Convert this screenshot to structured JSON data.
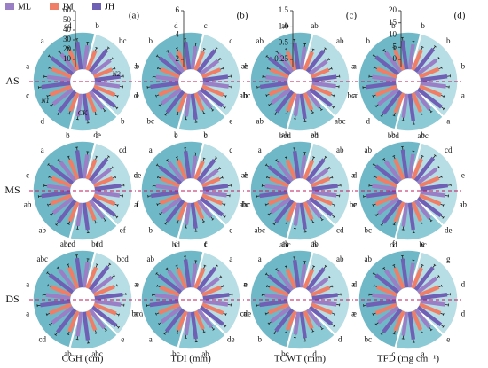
{
  "legend": [
    {
      "name": "ML",
      "color": "#9b7fc6"
    },
    {
      "name": "JM",
      "color": "#f07e66"
    },
    {
      "name": "JH",
      "color": "#6f5fb5"
    }
  ],
  "row_labels": [
    "AS",
    "MS",
    "DS"
  ],
  "colors": {
    "ring_dark": "#6fb8c7",
    "ring_mid": "#8ccad6",
    "ring_light": "#b7dde5",
    "sector_line": "#ffffff",
    "dashed": "#c2185b",
    "error_bar": "#222222"
  },
  "sector_labels": [
    "N1",
    "CK",
    "N2"
  ],
  "panels": [
    {
      "letter": "(a)",
      "xlabel": "CGH (cm)",
      "scale_ticks": [
        "60",
        "50",
        "40",
        "30",
        "20",
        "10"
      ]
    },
    {
      "letter": "(b)",
      "xlabel": "TDI (mm)",
      "scale_ticks": [
        "6",
        "4",
        "2"
      ]
    },
    {
      "letter": "(c)",
      "xlabel": "TCWT (mm)",
      "scale_ticks": [
        "1.5",
        "1.0",
        "0.5",
        "0.25"
      ]
    },
    {
      "letter": "(d)",
      "xlabel": "TFD (mg cm⁻¹)",
      "scale_ticks": [
        "20",
        "15",
        "10",
        "5",
        "0"
      ]
    }
  ],
  "chart_data": {
    "type": "radial-bar",
    "series": [
      {
        "name": "ML",
        "color": "#9b7fc6"
      },
      {
        "name": "JM",
        "color": "#f07e66"
      },
      {
        "name": "JH",
        "color": "#6f5fb5"
      }
    ],
    "grid": [
      [
        {
          "values": [
            0.75,
            0.65,
            0.85,
            0.7,
            0.6,
            0.8,
            0.78,
            0.7,
            0.88,
            0.66,
            0.62,
            0.82,
            0.7,
            0.6,
            0.8,
            0.76,
            0.7,
            0.9,
            0.72,
            0.64,
            0.84,
            0.7,
            0.66,
            0.86
          ],
          "letters": [
            "b",
            "bc",
            "b",
            "e",
            "b",
            "a",
            "b",
            "d",
            "c",
            "a",
            "a",
            "cd"
          ]
        },
        {
          "values": [
            0.72,
            0.62,
            0.84,
            0.68,
            0.6,
            0.78,
            0.8,
            0.7,
            0.86,
            0.64,
            0.58,
            0.8,
            0.7,
            0.62,
            0.82,
            0.74,
            0.68,
            0.88,
            0.7,
            0.62,
            0.84,
            0.72,
            0.64,
            0.86
          ],
          "letters": [
            "c",
            "c",
            "e",
            "b",
            "e",
            "c",
            "e",
            "bc",
            "d",
            "a",
            "b",
            "d"
          ]
        },
        {
          "values": [
            0.7,
            0.6,
            0.82,
            0.66,
            0.58,
            0.76,
            0.74,
            0.66,
            0.84,
            0.62,
            0.56,
            0.78,
            0.68,
            0.6,
            0.8,
            0.72,
            0.64,
            0.86,
            0.68,
            0.6,
            0.82,
            0.7,
            0.62,
            0.84
          ],
          "letters": [
            "ab",
            "ab",
            "a",
            "a",
            "abc",
            "cd",
            "bcd",
            "ab",
            "abc",
            "ab",
            "ab",
            "ab"
          ]
        },
        {
          "values": [
            0.78,
            0.68,
            0.9,
            0.72,
            0.64,
            0.84,
            0.8,
            0.72,
            0.92,
            0.7,
            0.62,
            0.86,
            0.74,
            0.66,
            0.88,
            0.78,
            0.7,
            0.94,
            0.74,
            0.66,
            0.88,
            0.76,
            0.68,
            0.9
          ],
          "letters": [
            "b",
            "b",
            "b",
            "a",
            "a",
            "abc",
            "bcd",
            "d",
            "bcd",
            "a",
            "b",
            "b"
          ]
        }
      ],
      [
        {
          "values": [
            0.74,
            0.66,
            0.86,
            0.7,
            0.62,
            0.82,
            0.78,
            0.7,
            0.88,
            0.68,
            0.6,
            0.84,
            0.72,
            0.64,
            0.86,
            0.76,
            0.68,
            0.9,
            0.72,
            0.64,
            0.86,
            0.74,
            0.66,
            0.88
          ],
          "letters": [
            "de",
            "cd",
            "de",
            "f",
            "ef",
            "f",
            "dc",
            "ab",
            "ab",
            "c",
            "a",
            "c"
          ]
        },
        {
          "values": [
            0.7,
            0.6,
            0.82,
            0.66,
            0.58,
            0.78,
            0.74,
            0.66,
            0.86,
            0.64,
            0.56,
            0.8,
            0.68,
            0.6,
            0.82,
            0.72,
            0.64,
            0.86,
            0.7,
            0.62,
            0.84,
            0.72,
            0.64,
            0.86
          ],
          "letters": [
            "b",
            "c",
            "e",
            "bc",
            "e",
            "f",
            "bd",
            "b",
            "a",
            "a",
            "a",
            "b"
          ]
        },
        {
          "values": [
            0.72,
            0.64,
            0.84,
            0.68,
            0.6,
            0.8,
            0.76,
            0.68,
            0.86,
            0.66,
            0.58,
            0.82,
            0.7,
            0.62,
            0.84,
            0.74,
            0.66,
            0.88,
            0.7,
            0.62,
            0.84,
            0.72,
            0.64,
            0.86
          ],
          "letters": [
            "ab",
            "ab",
            "d",
            "e",
            "cd",
            "b",
            "abc",
            "abc",
            "abc",
            "ab",
            "a",
            "ab"
          ]
        },
        {
          "values": [
            0.76,
            0.68,
            0.9,
            0.72,
            0.64,
            0.86,
            0.78,
            0.7,
            0.9,
            0.7,
            0.62,
            0.84,
            0.74,
            0.66,
            0.88,
            0.78,
            0.7,
            0.92,
            0.74,
            0.66,
            0.88,
            0.76,
            0.68,
            0.9
          ],
          "letters": [
            "b",
            "cd",
            "e",
            "ab",
            "de",
            "bc",
            "cd",
            "bc",
            "bc",
            "a",
            "ab",
            "b"
          ]
        }
      ],
      [
        {
          "values": [
            0.8,
            0.7,
            0.92,
            0.76,
            0.68,
            0.88,
            0.82,
            0.74,
            0.94,
            0.72,
            0.64,
            0.88,
            0.76,
            0.68,
            0.9,
            0.8,
            0.72,
            0.94,
            0.76,
            0.68,
            0.9,
            0.78,
            0.7,
            0.92
          ],
          "letters": [
            "bcd",
            "bcd",
            "e",
            "bcd",
            "e",
            "abc",
            "ab",
            "cd",
            "a",
            "a",
            "abc",
            "abcd"
          ]
        },
        {
          "values": [
            0.74,
            0.66,
            0.86,
            0.7,
            0.62,
            0.82,
            0.78,
            0.7,
            0.88,
            0.68,
            0.6,
            0.84,
            0.72,
            0.64,
            0.86,
            0.76,
            0.68,
            0.9,
            0.72,
            0.64,
            0.86,
            0.74,
            0.66,
            0.88
          ],
          "letters": [
            "c",
            "a",
            "e",
            "cde",
            "de",
            "ab",
            "bc",
            "a",
            "a",
            "a",
            "ab",
            "d"
          ]
        },
        {
          "values": [
            0.72,
            0.64,
            0.84,
            0.68,
            0.6,
            0.8,
            0.76,
            0.68,
            0.86,
            0.66,
            0.58,
            0.82,
            0.7,
            0.62,
            0.84,
            0.74,
            0.66,
            0.88,
            0.7,
            0.62,
            0.84,
            0.72,
            0.64,
            0.86
          ],
          "letters": [
            "ab",
            "ab",
            "d",
            "e",
            "d",
            "d",
            "bc",
            "b",
            "a",
            "a",
            "a",
            "ab"
          ]
        },
        {
          "values": [
            0.76,
            0.68,
            0.88,
            0.72,
            0.64,
            0.84,
            0.78,
            0.7,
            0.9,
            0.7,
            0.62,
            0.86,
            0.74,
            0.66,
            0.88,
            0.78,
            0.7,
            0.92,
            0.74,
            0.66,
            0.88,
            0.76,
            0.68,
            0.9
          ],
          "letters": [
            "e",
            "g",
            "d",
            "d",
            "e",
            "a",
            "c",
            "bc",
            "a",
            "a",
            "ab",
            "f"
          ]
        }
      ]
    ]
  }
}
